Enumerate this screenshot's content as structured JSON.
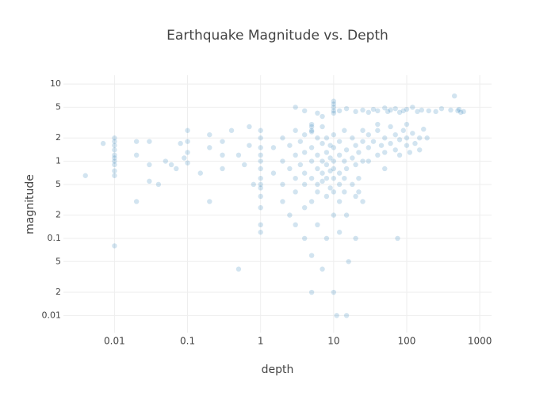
{
  "chart_data": {
    "type": "scatter",
    "title": "Earthquake Magnitude vs. Depth",
    "x_label": "depth",
    "y_label": "magnitude",
    "x_log": true,
    "y_log": true,
    "grid": true,
    "color": "#1f77b4",
    "marker_opacity": 0.2,
    "xlim": [
      0.002,
      1450
    ],
    "ylim": [
      0.006,
      13
    ],
    "xticks": [
      0.01,
      0.1,
      1,
      10,
      100,
      1000
    ],
    "yticks": [
      10,
      5,
      2,
      1,
      {
        "value": 0.5,
        "label": "5"
      },
      {
        "value": 0.2,
        "label": "2"
      },
      0.1,
      {
        "value": 0.05,
        "label": "5"
      },
      {
        "value": 0.02,
        "label": "2"
      },
      0.01
    ],
    "x": [
      0.01,
      0.01,
      0.01,
      0.01,
      0.01,
      0.01,
      0.01,
      0.01,
      0.01,
      0.01,
      0.01,
      0.004,
      0.007,
      0.02,
      0.02,
      0.02,
      0.03,
      0.03,
      0.03,
      0.04,
      0.05,
      0.06,
      0.07,
      0.08,
      0.1,
      0.1,
      0.1,
      0.1,
      0.09,
      0.2,
      0.2,
      0.15,
      0.3,
      0.3,
      0.3,
      0.2,
      0.5,
      0.5,
      0.4,
      0.6,
      0.7,
      0.8,
      0.7,
      1,
      1,
      1,
      1,
      1,
      1,
      1,
      1,
      1,
      1,
      1,
      1,
      1,
      1.5,
      1.5,
      2,
      2,
      2,
      2,
      2.5,
      2.5,
      2.5,
      3,
      3,
      3,
      3,
      3,
      3.5,
      3.5,
      4,
      4,
      4,
      4,
      4,
      4,
      5,
      5,
      5,
      5,
      5,
      5,
      5,
      5,
      6,
      6,
      6,
      6,
      6,
      6,
      7,
      7,
      7,
      7,
      7,
      7,
      8,
      8,
      8,
      8,
      8,
      8,
      9,
      9,
      9,
      9,
      10,
      10,
      10,
      10,
      10,
      10,
      10,
      10,
      10,
      10,
      10,
      10,
      10,
      11,
      12,
      12,
      12,
      12,
      12,
      12,
      14,
      14,
      14,
      14,
      15,
      15,
      15,
      15,
      16,
      18,
      18,
      18,
      20,
      20,
      20,
      20,
      22,
      22,
      22,
      25,
      25,
      25,
      25,
      30,
      30,
      30,
      35,
      40,
      40,
      40,
      45,
      50,
      50,
      50,
      60,
      60,
      70,
      70,
      75,
      80,
      80,
      90,
      100,
      100,
      100,
      110,
      120,
      130,
      150,
      150,
      170,
      190,
      12,
      15,
      20,
      25,
      30,
      35,
      40,
      50,
      55,
      60,
      70,
      80,
      90,
      100,
      120,
      140,
      160,
      200,
      250,
      300,
      400,
      450,
      500,
      550,
      600,
      520,
      6,
      7,
      5,
      5,
      4,
      3
    ],
    "values": [
      0.75,
      1,
      1.2,
      1.4,
      1.6,
      1.8,
      2,
      0.9,
      1.1,
      0.08,
      0.65,
      0.65,
      1.7,
      1.8,
      0.3,
      1.2,
      0.9,
      1.8,
      0.55,
      0.5,
      1,
      0.9,
      0.8,
      1.7,
      1.8,
      2.5,
      1.3,
      0.95,
      1.1,
      2.2,
      1.5,
      0.7,
      1.8,
      1.2,
      0.8,
      0.3,
      0.04,
      1.2,
      2.5,
      0.9,
      1.6,
      0.5,
      2.8,
      0.5,
      0.6,
      0.8,
      1,
      1.2,
      1.5,
      2,
      2.5,
      0.45,
      0.35,
      0.25,
      0.15,
      0.12,
      1.5,
      0.7,
      1,
      0.5,
      2,
      0.3,
      0.8,
      1.6,
      0.2,
      1.2,
      0.6,
      2.5,
      0.4,
      0.15,
      0.9,
      1.8,
      0.7,
      1.3,
      0.5,
      2.2,
      0.25,
      0.1,
      1,
      0.6,
      1.5,
      3,
      2.5,
      0.3,
      0.06,
      0.02,
      0.8,
      1.2,
      0.5,
      2,
      0.4,
      0.15,
      1,
      0.7,
      1.7,
      0.55,
      2.8,
      0.04,
      0.9,
      1.3,
      0.6,
      0.35,
      2,
      0.1,
      1.1,
      0.75,
      0.45,
      1.6,
      1,
      0.8,
      1.5,
      0.6,
      2.2,
      0.4,
      0.2,
      0.02,
      4.2,
      4.5,
      5,
      5.5,
      6,
      0.01,
      1.2,
      0.7,
      0.5,
      1.8,
      0.3,
      0.12,
      1,
      0.6,
      2.5,
      0.4,
      0.8,
      1.4,
      0.2,
      0.01,
      0.05,
      1.1,
      0.5,
      2,
      0.9,
      1.6,
      0.35,
      0.1,
      1.3,
      0.6,
      0.4,
      1,
      2.5,
      1.8,
      0.3,
      1.5,
      2.2,
      1,
      1.8,
      1.2,
      2.5,
      3,
      1.6,
      2,
      1.3,
      0.8,
      1.7,
      2.8,
      1.4,
      2.2,
      0.1,
      1.9,
      1.2,
      2.5,
      1.6,
      2,
      3,
      1.3,
      2.3,
      1.7,
      2,
      1.4,
      2.6,
      2,
      4.5,
      4.8,
      4.4,
      4.6,
      4.3,
      4.7,
      4.5,
      4.9,
      4.4,
      4.6,
      4.8,
      4.3,
      4.5,
      4.7,
      5,
      4.4,
      4.6,
      4.5,
      4.4,
      4.8,
      4.6,
      7,
      4.5,
      4.3,
      4.4,
      4.7,
      4.2,
      3.8,
      2.8,
      2.4,
      4.5,
      5
    ]
  }
}
